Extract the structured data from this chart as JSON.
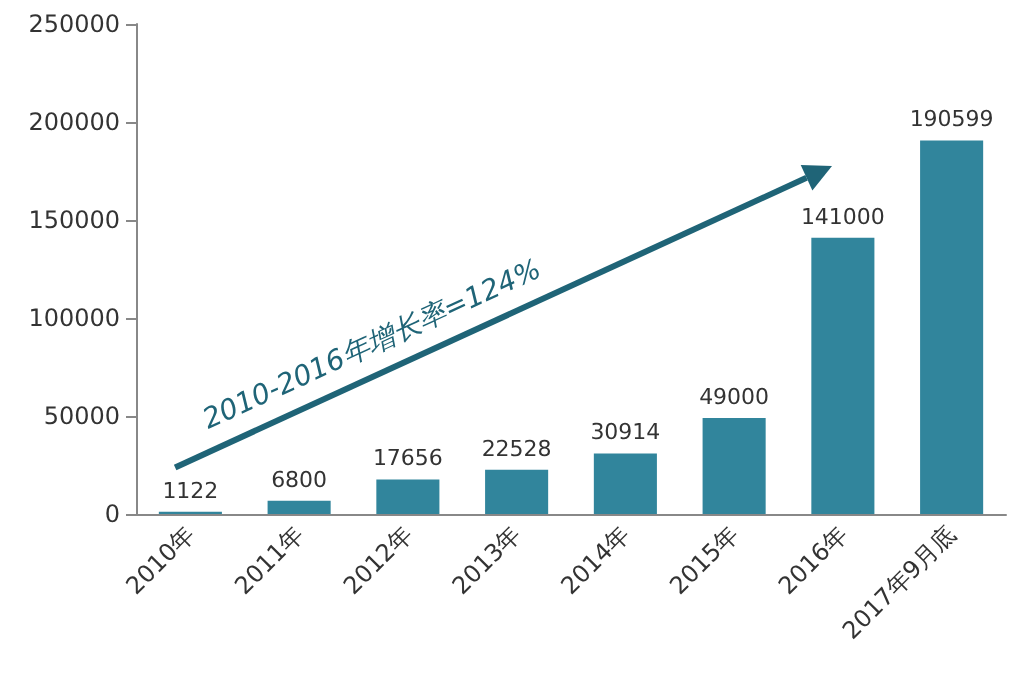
{
  "chart_data": {
    "type": "bar",
    "categories": [
      "2010年",
      "2011年",
      "2012年",
      "2013年",
      "2014年",
      "2015年",
      "2016年",
      "2017年9月底"
    ],
    "values": [
      1122,
      6800,
      17656,
      22528,
      30914,
      49000,
      141000,
      190599
    ],
    "color": "#31859c",
    "ylim": [
      0,
      250000
    ],
    "yticks": [
      0,
      50000,
      100000,
      150000,
      200000,
      250000
    ],
    "grid": false,
    "data_labels": true,
    "annotations": [
      "2010-2016年增长率=124%"
    ]
  }
}
